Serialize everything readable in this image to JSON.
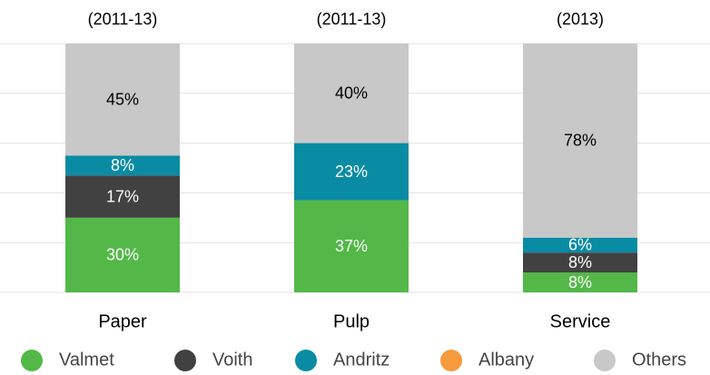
{
  "chart_data": {
    "type": "stacked_bar",
    "categories": [
      "Paper",
      "Pulp",
      "Service"
    ],
    "annotations": [
      "(2011-13)",
      "(2011-13)",
      "(2013)"
    ],
    "series": [
      {
        "name": "Valmet",
        "color": "#53b848",
        "label_color": "#ffffff",
        "values": [
          30,
          37,
          8
        ],
        "value_labels": [
          "30%",
          "37%",
          "8%"
        ]
      },
      {
        "name": "Voith",
        "color": "#414142",
        "label_color": "#ffffff",
        "values": [
          17,
          null,
          8
        ],
        "value_labels": [
          "17%",
          null,
          "8%"
        ]
      },
      {
        "name": "Andritz",
        "color": "#0a8ba4",
        "label_color": "#ffffff",
        "values": [
          8,
          23,
          6
        ],
        "value_labels": [
          "8%",
          "23%",
          "6%"
        ]
      },
      {
        "name": "Albany",
        "color": "#f79a3e",
        "label_color": "#ffffff",
        "values": [
          null,
          null,
          null
        ],
        "value_labels": [
          null,
          null,
          null
        ]
      },
      {
        "name": "Others",
        "color": "#c8c8c8",
        "label_color": "#000000",
        "values": [
          45,
          40,
          78
        ],
        "value_labels": [
          "45%",
          "40%",
          "78%"
        ]
      }
    ],
    "ylim": [
      0,
      100
    ],
    "yticks": [
      0,
      20,
      40,
      60,
      80,
      100
    ],
    "grid": true,
    "legend": "bottom"
  }
}
